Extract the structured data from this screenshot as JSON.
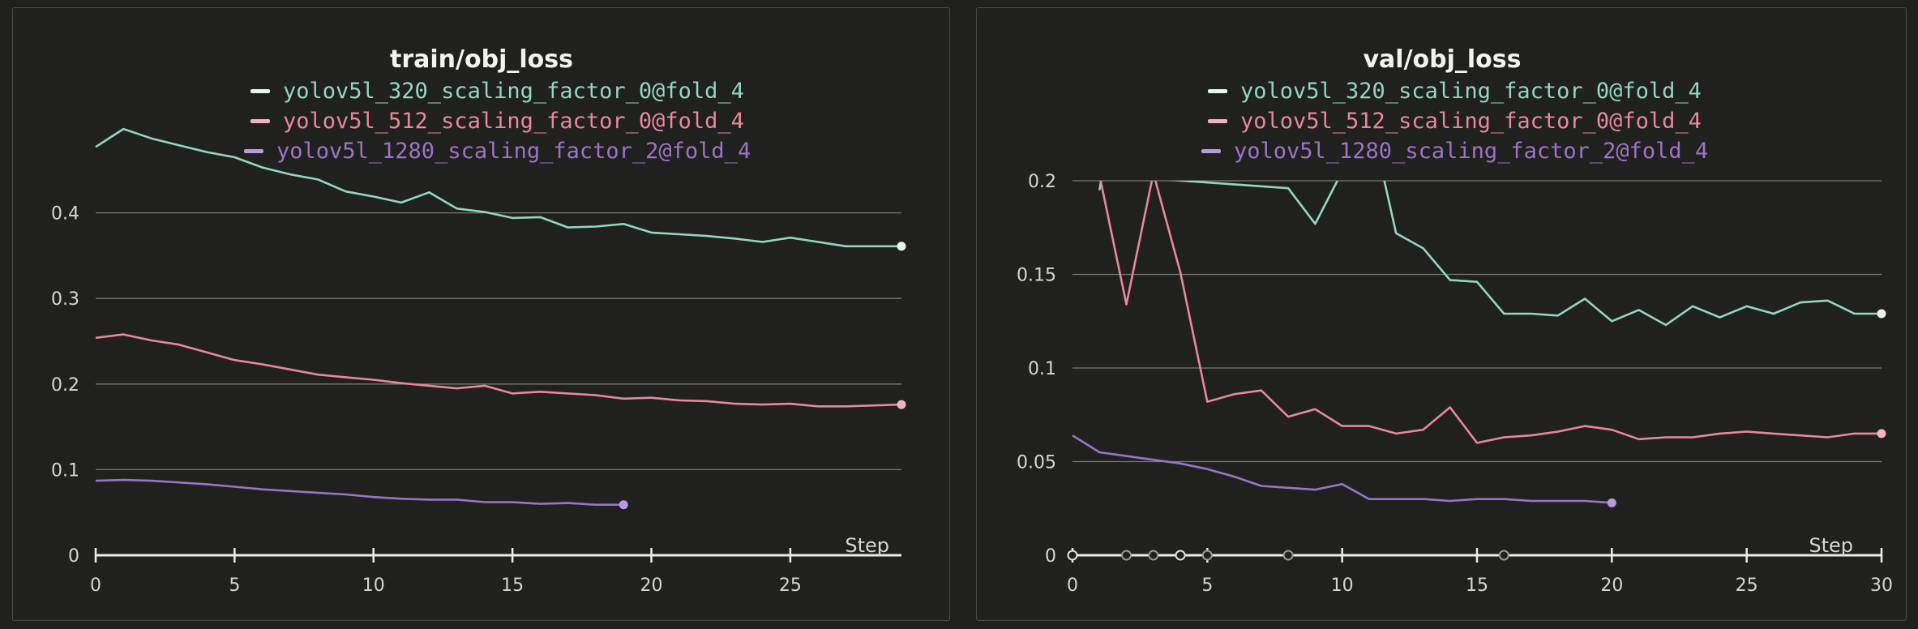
{
  "chart_data": [
    {
      "type": "line",
      "title": "train/obj_loss",
      "xlabel": "Step",
      "ylabel": "",
      "xlim": [
        0,
        29
      ],
      "ylim": [
        0,
        0.5
      ],
      "x_ticks": [
        0,
        5,
        10,
        15,
        20,
        25
      ],
      "y_ticks": [
        0,
        0.1,
        0.2,
        0.3,
        0.4
      ],
      "y_tick_labels": [
        "0",
        "0.1",
        "0.2",
        "0.3",
        "0.4"
      ],
      "grid": true,
      "legend": "top-center",
      "series": [
        {
          "name": "yolov5l_320_scaling_factor_0@fold_4",
          "color": "#92d6c3",
          "marker_color": "#e6f6ec",
          "x": [
            0,
            1,
            2,
            3,
            4,
            5,
            6,
            7,
            8,
            9,
            10,
            11,
            12,
            13,
            14,
            15,
            16,
            17,
            18,
            19,
            20,
            21,
            22,
            23,
            24,
            25,
            26,
            27,
            28,
            29
          ],
          "y": [
            0.477,
            0.498,
            0.487,
            0.479,
            0.471,
            0.465,
            0.453,
            0.445,
            0.439,
            0.425,
            0.419,
            0.412,
            0.424,
            0.405,
            0.401,
            0.394,
            0.395,
            0.383,
            0.384,
            0.387,
            0.377,
            0.375,
            0.373,
            0.37,
            0.366,
            0.371,
            0.366,
            0.361,
            0.361,
            0.361
          ]
        },
        {
          "name": "yolov5l_512_scaling_factor_0@fold_4",
          "color": "#e8879d",
          "marker_color": "#f2b3c0",
          "x": [
            0,
            1,
            2,
            3,
            4,
            5,
            6,
            7,
            8,
            9,
            10,
            11,
            12,
            13,
            14,
            15,
            16,
            17,
            18,
            19,
            20,
            21,
            22,
            23,
            24,
            25,
            26,
            27,
            28,
            29
          ],
          "y": [
            0.254,
            0.258,
            0.251,
            0.246,
            0.237,
            0.228,
            0.223,
            0.217,
            0.211,
            0.208,
            0.205,
            0.201,
            0.198,
            0.195,
            0.198,
            0.189,
            0.191,
            0.189,
            0.187,
            0.183,
            0.184,
            0.181,
            0.18,
            0.177,
            0.176,
            0.177,
            0.174,
            0.174,
            0.175,
            0.176
          ]
        },
        {
          "name": "yolov5l_1280_scaling_factor_2@fold_4",
          "color": "#9a74c8",
          "marker_color": "#b89ade",
          "x": [
            0,
            1,
            2,
            3,
            4,
            5,
            6,
            7,
            8,
            9,
            10,
            11,
            12,
            13,
            14,
            15,
            16,
            17,
            18,
            19
          ],
          "y": [
            0.087,
            0.088,
            0.087,
            0.085,
            0.083,
            0.08,
            0.077,
            0.075,
            0.073,
            0.071,
            0.068,
            0.066,
            0.065,
            0.065,
            0.062,
            0.062,
            0.06,
            0.061,
            0.059,
            0.059
          ]
        }
      ]
    },
    {
      "type": "line",
      "title": "val/obj_loss",
      "xlabel": "Step",
      "ylabel": "",
      "xlim": [
        0,
        30
      ],
      "ylim": [
        0,
        0.2
      ],
      "x_ticks": [
        0,
        5,
        10,
        15,
        20,
        25,
        30
      ],
      "y_ticks": [
        0,
        0.05,
        0.1,
        0.15,
        0.2
      ],
      "y_tick_labels": [
        "0",
        "0.05",
        "0.1",
        "0.15",
        "0.2"
      ],
      "grid": true,
      "legend": "top-center",
      "axis_markers": [
        0,
        2,
        3,
        4,
        5,
        8,
        16
      ],
      "series": [
        {
          "name": "yolov5l_320_scaling_factor_0@fold_4",
          "color": "#92d6c3",
          "marker_color": "#e6f6ec",
          "x": [
            1,
            1.1,
            1.2,
            8,
            9,
            10,
            11,
            11.5,
            12,
            13,
            14,
            15,
            16,
            17,
            18,
            19,
            20,
            21,
            22,
            23,
            24,
            25,
            26,
            27,
            28,
            29,
            30
          ],
          "y": [
            0.195,
            0.204,
            0.203,
            0.196,
            0.177,
            0.205,
            0.207,
            0.204,
            0.172,
            0.164,
            0.147,
            0.146,
            0.129,
            0.129,
            0.128,
            0.137,
            0.125,
            0.131,
            0.123,
            0.133,
            0.127,
            0.133,
            0.129,
            0.135,
            0.136,
            0.129,
            0.129
          ]
        },
        {
          "name": "yolov5l_512_scaling_factor_0@fold_4",
          "color": "#e8879d",
          "marker_color": "#f2b3c0",
          "x": [
            1,
            2,
            3,
            4,
            5,
            6,
            7,
            8,
            9,
            10,
            11,
            12,
            13,
            14,
            15,
            16,
            17,
            18,
            19,
            20,
            21,
            22,
            23,
            24,
            25,
            26,
            27,
            28,
            29,
            30
          ],
          "y": [
            0.203,
            0.134,
            0.204,
            0.151,
            0.082,
            0.086,
            0.088,
            0.074,
            0.078,
            0.069,
            0.069,
            0.065,
            0.067,
            0.079,
            0.06,
            0.063,
            0.064,
            0.066,
            0.069,
            0.067,
            0.062,
            0.063,
            0.063,
            0.065,
            0.066,
            0.065,
            0.064,
            0.063,
            0.065,
            0.065
          ]
        },
        {
          "name": "yolov5l_1280_scaling_factor_2@fold_4",
          "color": "#9a74c8",
          "marker_color": "#b89ade",
          "x": [
            0,
            1,
            2,
            3,
            4,
            5,
            6,
            7,
            8,
            9,
            10,
            11,
            12,
            13,
            14,
            15,
            16,
            17,
            18,
            19,
            20
          ],
          "y": [
            0.064,
            0.055,
            0.053,
            0.051,
            0.049,
            0.046,
            0.042,
            0.037,
            0.036,
            0.035,
            0.038,
            0.03,
            0.03,
            0.03,
            0.029,
            0.03,
            0.03,
            0.029,
            0.029,
            0.029,
            0.028
          ]
        }
      ]
    }
  ]
}
